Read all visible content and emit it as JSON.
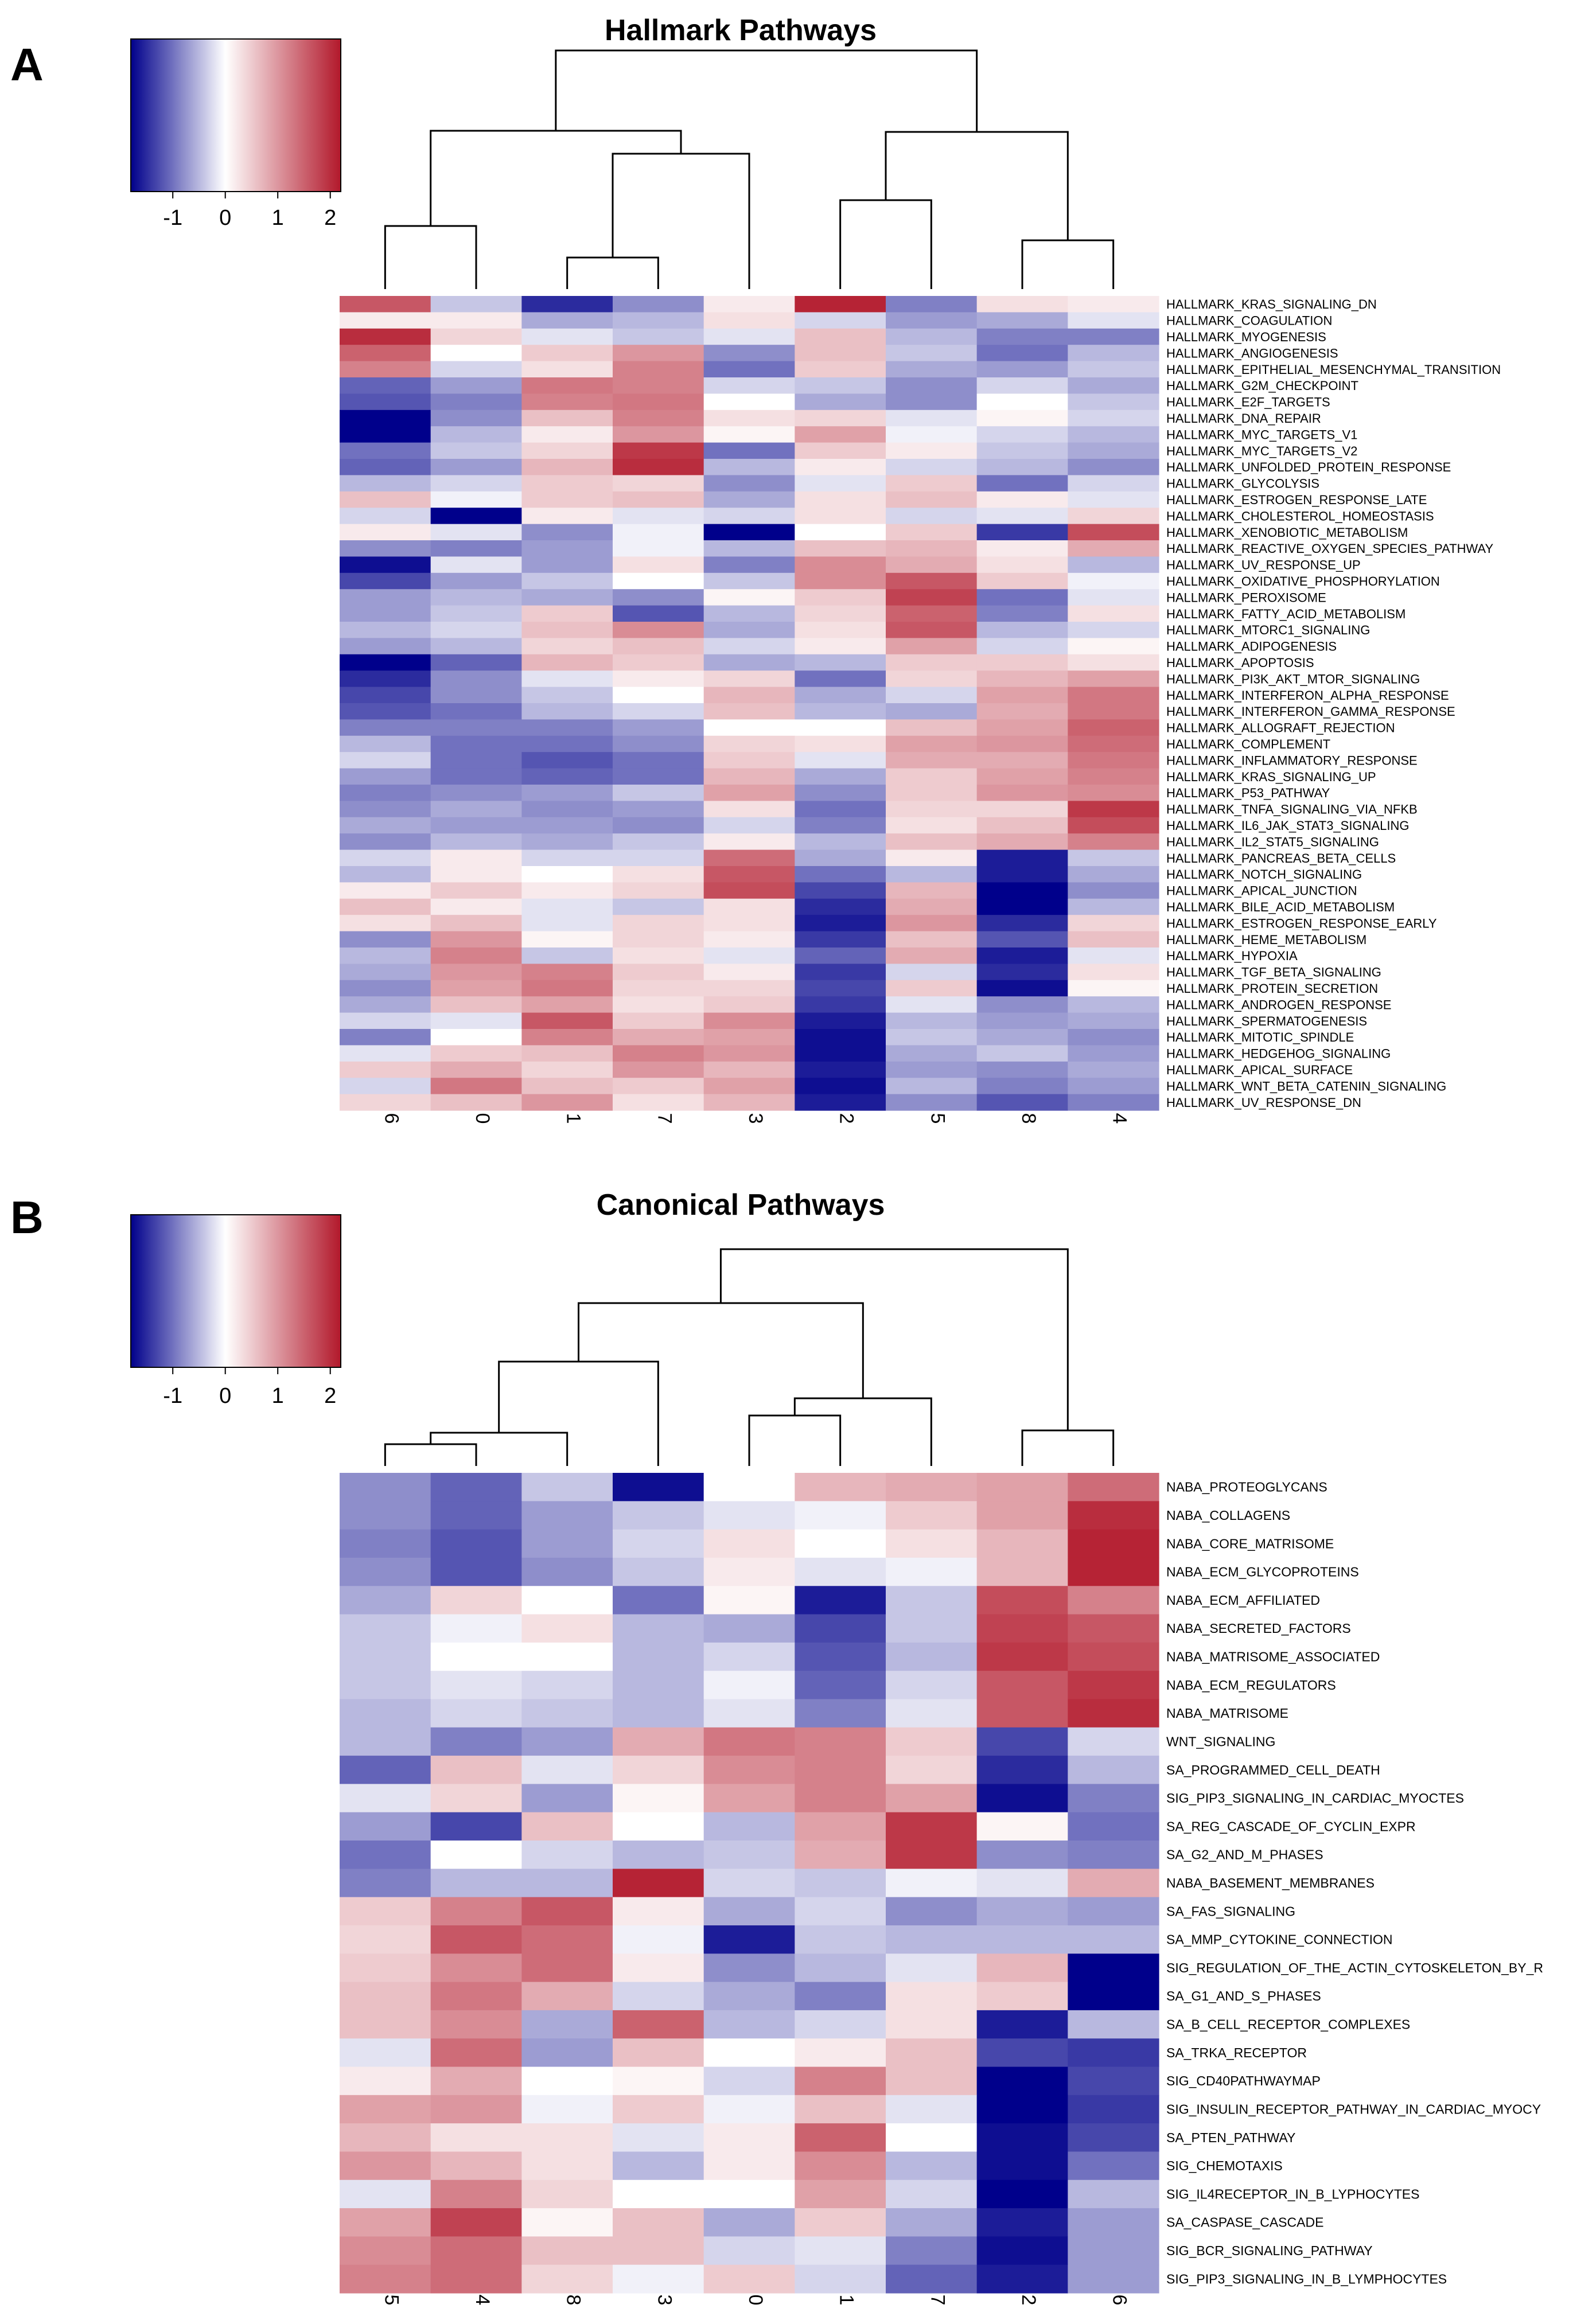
{
  "panels": [
    {
      "label": "A",
      "chart_data": {
        "type": "heatmap",
        "title": "Hallmark Pathways",
        "color_scale": {
          "low": "#00008B",
          "mid": "#FFFFFF",
          "high": "#B2182B",
          "range": [
            -1.8,
            2.2
          ],
          "ticks": [
            "-1",
            "0",
            "1",
            "2"
          ],
          "tick_values": [
            -1,
            0,
            1,
            2
          ]
        },
        "columns": [
          "6",
          "0",
          "1",
          "7",
          "3",
          "2",
          "5",
          "8",
          "4"
        ],
        "rows": [
          "HALLMARK_KRAS_SIGNALING_DN",
          "HALLMARK_COAGULATION",
          "HALLMARK_MYOGENESIS",
          "HALLMARK_ANGIOGENESIS",
          "HALLMARK_EPITHELIAL_MESENCHYMAL_TRANSITION",
          "HALLMARK_G2M_CHECKPOINT",
          "HALLMARK_E2F_TARGETS",
          "HALLMARK_DNA_REPAIR",
          "HALLMARK_MYC_TARGETS_V1",
          "HALLMARK_MYC_TARGETS_V2",
          "HALLMARK_UNFOLDED_PROTEIN_RESPONSE",
          "HALLMARK_GLYCOLYSIS",
          "HALLMARK_ESTROGEN_RESPONSE_LATE",
          "HALLMARK_CHOLESTEROL_HOMEOSTASIS",
          "HALLMARK_XENOBIOTIC_METABOLISM",
          "HALLMARK_REACTIVE_OXYGEN_SPECIES_PATHWAY",
          "HALLMARK_UV_RESPONSE_UP",
          "HALLMARK_OXIDATIVE_PHOSPHORYLATION",
          "HALLMARK_PEROXISOME",
          "HALLMARK_FATTY_ACID_METABOLISM",
          "HALLMARK_MTORC1_SIGNALING",
          "HALLMARK_ADIPOGENESIS",
          "HALLMARK_APOPTOSIS",
          "HALLMARK_PI3K_AKT_MTOR_SIGNALING",
          "HALLMARK_INTERFERON_ALPHA_RESPONSE",
          "HALLMARK_INTERFERON_GAMMA_RESPONSE",
          "HALLMARK_ALLOGRAFT_REJECTION",
          "HALLMARK_COMPLEMENT",
          "HALLMARK_INFLAMMATORY_RESPONSE",
          "HALLMARK_KRAS_SIGNALING_UP",
          "HALLMARK_P53_PATHWAY",
          "HALLMARK_TNFA_SIGNALING_VIA_NFKB",
          "HALLMARK_IL6_JAK_STAT3_SIGNALING",
          "HALLMARK_IL2_STAT5_SIGNALING",
          "HALLMARK_PANCREAS_BETA_CELLS",
          "HALLMARK_NOTCH_SIGNALING",
          "HALLMARK_APICAL_JUNCTION",
          "HALLMARK_BILE_ACID_METABOLISM",
          "HALLMARK_ESTROGEN_RESPONSE_EARLY",
          "HALLMARK_HEME_METABOLISM",
          "HALLMARK_HYPOXIA",
          "HALLMARK_TGF_BETA_SIGNALING",
          "HALLMARK_PROTEIN_SECRETION",
          "HALLMARK_ANDROGEN_RESPONSE",
          "HALLMARK_SPERMATOGENESIS",
          "HALLMARK_MITOTIC_SPINDLE",
          "HALLMARK_HEDGEHOG_SIGNALING",
          "HALLMARK_APICAL_SURFACE",
          "HALLMARK_WNT_BETA_CATENIN_SIGNALING",
          "HALLMARK_UV_RESPONSE_DN"
        ],
        "values": [
          [
            1.6,
            -0.4,
            -1.5,
            -0.8,
            0.2,
            2.1,
            -0.9,
            0.3,
            0.2
          ],
          [
            0.2,
            0.2,
            -0.6,
            -0.5,
            0.3,
            -0.3,
            -0.7,
            -0.6,
            -0.2
          ],
          [
            2.0,
            0.4,
            -0.2,
            -0.4,
            -0.2,
            0.6,
            -0.5,
            -0.9,
            -0.9
          ],
          [
            1.5,
            0.0,
            0.5,
            1.0,
            -0.8,
            0.6,
            -0.4,
            -1.0,
            -0.5
          ],
          [
            1.2,
            -0.3,
            0.3,
            1.2,
            -1.0,
            0.5,
            -0.6,
            -0.7,
            -0.4
          ],
          [
            -1.1,
            -0.7,
            1.3,
            1.2,
            -0.3,
            -0.4,
            -0.8,
            -0.3,
            -0.6
          ],
          [
            -1.2,
            -0.9,
            1.2,
            1.3,
            0.0,
            -0.6,
            -0.8,
            0.0,
            -0.4
          ],
          [
            -1.8,
            -0.8,
            0.6,
            1.2,
            0.3,
            0.4,
            -0.2,
            0.1,
            -0.3
          ],
          [
            -1.8,
            -0.5,
            0.2,
            1.0,
            0.1,
            0.9,
            -0.1,
            -0.3,
            -0.5
          ],
          [
            -1.0,
            -0.4,
            0.4,
            1.9,
            -1.0,
            0.5,
            0.2,
            -0.4,
            -0.6
          ],
          [
            -1.1,
            -0.7,
            0.7,
            2.0,
            -0.5,
            0.2,
            -0.3,
            -0.5,
            -0.8
          ],
          [
            -0.5,
            -0.3,
            0.5,
            0.4,
            -0.8,
            -0.2,
            0.5,
            -1.0,
            -0.3
          ],
          [
            0.6,
            -0.1,
            0.5,
            0.6,
            -0.6,
            0.3,
            0.6,
            0.2,
            -0.2
          ],
          [
            -0.3,
            -1.8,
            0.2,
            -0.2,
            -0.3,
            0.3,
            -0.3,
            -0.2,
            0.4
          ],
          [
            0.2,
            -0.2,
            -0.8,
            -0.1,
            -1.8,
            0.0,
            0.5,
            -1.4,
            1.7
          ],
          [
            -0.8,
            -0.9,
            -0.7,
            -0.1,
            -0.5,
            0.6,
            0.7,
            0.2,
            0.8
          ],
          [
            -1.7,
            -0.2,
            -0.7,
            0.3,
            -0.9,
            1.1,
            0.8,
            0.3,
            -0.5
          ],
          [
            -1.3,
            -0.7,
            -0.4,
            0.0,
            -0.4,
            1.1,
            1.6,
            0.5,
            -0.1
          ],
          [
            -0.7,
            -0.5,
            -0.6,
            -0.8,
            0.1,
            0.5,
            1.8,
            -1.0,
            -0.2
          ],
          [
            -0.7,
            -0.4,
            0.5,
            -1.2,
            -0.5,
            0.4,
            1.5,
            -0.9,
            0.3
          ],
          [
            -0.5,
            -0.3,
            0.6,
            1.1,
            -0.6,
            0.3,
            1.6,
            -0.5,
            -0.3
          ],
          [
            -0.7,
            -0.5,
            0.4,
            0.6,
            -0.3,
            0.2,
            0.9,
            -0.3,
            0.1
          ],
          [
            -1.8,
            -1.1,
            0.7,
            0.5,
            -0.6,
            -0.5,
            0.5,
            0.5,
            0.3
          ],
          [
            -1.5,
            -0.8,
            -0.2,
            0.2,
            0.4,
            -1.0,
            0.4,
            0.7,
            0.9
          ],
          [
            -1.3,
            -0.8,
            -0.4,
            0.0,
            0.7,
            -0.6,
            -0.3,
            0.9,
            1.3
          ],
          [
            -1.2,
            -1.0,
            -0.5,
            -0.3,
            0.6,
            -0.5,
            -0.6,
            0.8,
            1.3
          ],
          [
            -0.9,
            -0.9,
            -0.9,
            -0.7,
            0.0,
            0.0,
            0.6,
            0.9,
            1.5
          ],
          [
            -0.5,
            -1.0,
            -1.0,
            -0.8,
            0.4,
            0.3,
            0.9,
            1.0,
            1.4
          ],
          [
            -0.3,
            -1.0,
            -1.2,
            -1.0,
            0.5,
            -0.2,
            0.8,
            0.8,
            1.3
          ],
          [
            -0.7,
            -1.0,
            -1.1,
            -1.0,
            0.7,
            -0.6,
            0.5,
            0.9,
            1.2
          ],
          [
            -0.9,
            -0.8,
            -0.7,
            -0.4,
            0.9,
            -0.8,
            0.5,
            1.0,
            1.1
          ],
          [
            -0.8,
            -0.6,
            -0.8,
            -0.7,
            0.3,
            -1.0,
            0.4,
            0.4,
            1.9
          ],
          [
            -0.6,
            -0.7,
            -0.7,
            -0.8,
            -0.3,
            -0.9,
            0.3,
            0.6,
            1.7
          ],
          [
            -0.8,
            -0.5,
            -0.6,
            -0.4,
            0.2,
            -0.5,
            0.6,
            0.8,
            1.2
          ],
          [
            -0.3,
            0.2,
            -0.3,
            -0.3,
            1.4,
            -0.6,
            0.2,
            -1.6,
            -0.4
          ],
          [
            -0.5,
            0.2,
            0.0,
            0.3,
            1.6,
            -1.0,
            -0.5,
            -1.6,
            -0.6
          ],
          [
            0.2,
            0.5,
            0.2,
            0.4,
            1.7,
            -1.3,
            0.7,
            -1.8,
            -0.8
          ],
          [
            0.6,
            0.2,
            -0.2,
            -0.4,
            0.3,
            -1.5,
            0.8,
            -1.8,
            -0.5
          ],
          [
            0.3,
            0.6,
            -0.2,
            0.4,
            0.3,
            -1.6,
            1.0,
            -1.5,
            0.4
          ],
          [
            -0.8,
            1.0,
            0.1,
            0.4,
            0.2,
            -1.4,
            0.6,
            -1.2,
            0.6
          ],
          [
            -0.5,
            1.2,
            -0.4,
            0.3,
            -0.2,
            -1.1,
            0.8,
            -1.6,
            -0.2
          ],
          [
            -0.6,
            1.0,
            1.2,
            0.5,
            0.2,
            -1.4,
            -0.3,
            -1.5,
            0.3
          ],
          [
            -0.8,
            0.9,
            1.3,
            0.4,
            0.4,
            -1.3,
            0.5,
            -1.7,
            0.1
          ],
          [
            -0.6,
            0.6,
            0.9,
            0.3,
            0.5,
            -1.4,
            -0.2,
            -0.8,
            -0.5
          ],
          [
            -0.3,
            -0.2,
            1.6,
            0.5,
            1.1,
            -1.6,
            -0.5,
            -0.7,
            -0.6
          ],
          [
            -0.9,
            0.0,
            1.2,
            0.8,
            0.9,
            -1.7,
            -0.4,
            -0.6,
            -0.8
          ],
          [
            -0.2,
            0.5,
            0.6,
            1.2,
            1.0,
            -1.7,
            -0.6,
            -0.4,
            -0.7
          ],
          [
            0.5,
            0.8,
            0.4,
            1.0,
            0.7,
            -1.6,
            -0.7,
            -0.8,
            -0.6
          ],
          [
            -0.3,
            1.3,
            0.6,
            0.5,
            0.9,
            -1.7,
            -0.5,
            -0.9,
            -0.7
          ],
          [
            0.4,
            0.6,
            1.0,
            0.3,
            0.7,
            -1.6,
            -0.8,
            -1.2,
            -0.9
          ]
        ]
      }
    },
    {
      "label": "B",
      "chart_data": {
        "type": "heatmap",
        "title": "Canonical Pathways",
        "color_scale": {
          "low": "#00008B",
          "mid": "#FFFFFF",
          "high": "#B2182B",
          "range": [
            -1.8,
            2.2
          ],
          "ticks": [
            "-1",
            "0",
            "1",
            "2"
          ],
          "tick_values": [
            -1,
            0,
            1,
            2
          ]
        },
        "columns": [
          "5",
          "4",
          "8",
          "3",
          "0",
          "1",
          "7",
          "2",
          "6"
        ],
        "rows": [
          "NABA_PROTEOGLYCANS",
          "NABA_COLLAGENS",
          "NABA_CORE_MATRISOME",
          "NABA_ECM_GLYCOPROTEINS",
          "NABA_ECM_AFFILIATED",
          "NABA_SECRETED_FACTORS",
          "NABA_MATRISOME_ASSOCIATED",
          "NABA_ECM_REGULATORS",
          "NABA_MATRISOME",
          "WNT_SIGNALING",
          "SA_PROGRAMMED_CELL_DEATH",
          "SIG_PIP3_SIGNALING_IN_CARDIAC_MYOCTES",
          "SA_REG_CASCADE_OF_CYCLIN_EXPR",
          "SA_G2_AND_M_PHASES",
          "NABA_BASEMENT_MEMBRANES",
          "SA_FAS_SIGNALING",
          "SA_MMP_CYTOKINE_CONNECTION",
          "SIG_REGULATION_OF_THE_ACTIN_CYTOSKELETON_BY_R",
          "SA_G1_AND_S_PHASES",
          "SA_B_CELL_RECEPTOR_COMPLEXES",
          "SA_TRKA_RECEPTOR",
          "SIG_CD40PATHWAYMAP",
          "SIG_INSULIN_RECEPTOR_PATHWAY_IN_CARDIAC_MYOCY",
          "SA_PTEN_PATHWAY",
          "SIG_CHEMOTAXIS",
          "SIG_IL4RECEPTOR_IN_B_LYPHOCYTES",
          "SA_CASPASE_CASCADE",
          "SIG_BCR_SIGNALING_PATHWAY",
          "SIG_PIP3_SIGNALING_IN_B_LYMPHOCYTES"
        ],
        "values": [
          [
            -0.8,
            -1.1,
            -0.4,
            -1.7,
            0.0,
            0.7,
            0.8,
            0.9,
            1.4
          ],
          [
            -0.8,
            -1.1,
            -0.7,
            -0.4,
            -0.2,
            -0.1,
            0.5,
            0.9,
            2.0
          ],
          [
            -0.9,
            -1.2,
            -0.7,
            -0.3,
            0.3,
            0.0,
            0.3,
            0.7,
            2.1
          ],
          [
            -0.8,
            -1.2,
            -0.8,
            -0.4,
            0.2,
            -0.2,
            -0.1,
            0.7,
            2.1
          ],
          [
            -0.6,
            0.4,
            0.0,
            -1.0,
            0.1,
            -1.6,
            -0.4,
            1.7,
            1.2
          ],
          [
            -0.4,
            -0.1,
            0.3,
            -0.5,
            -0.6,
            -1.3,
            -0.4,
            1.8,
            1.6
          ],
          [
            -0.4,
            0.0,
            0.0,
            -0.5,
            -0.3,
            -1.2,
            -0.5,
            1.9,
            1.7
          ],
          [
            -0.4,
            -0.2,
            -0.3,
            -0.5,
            -0.1,
            -1.1,
            -0.3,
            1.6,
            1.9
          ],
          [
            -0.5,
            -0.3,
            -0.4,
            -0.5,
            -0.2,
            -0.9,
            -0.2,
            1.6,
            2.0
          ],
          [
            -0.5,
            -0.9,
            -0.7,
            0.8,
            1.3,
            1.2,
            0.5,
            -1.3,
            -0.3
          ],
          [
            -1.1,
            0.6,
            -0.2,
            0.4,
            1.1,
            1.2,
            0.4,
            -1.5,
            -0.5
          ],
          [
            -0.2,
            0.4,
            -0.7,
            0.1,
            0.9,
            1.2,
            0.9,
            -1.7,
            -0.9
          ],
          [
            -0.7,
            -1.3,
            0.6,
            0.0,
            -0.5,
            0.9,
            1.9,
            0.1,
            -1.0
          ],
          [
            -1.0,
            0.0,
            -0.3,
            -0.5,
            -0.4,
            0.8,
            1.9,
            -0.8,
            -0.9
          ],
          [
            -0.9,
            -0.5,
            -0.5,
            2.1,
            -0.3,
            -0.4,
            -0.1,
            -0.2,
            0.8
          ],
          [
            0.5,
            1.2,
            1.6,
            0.2,
            -0.6,
            -0.3,
            -0.8,
            -0.6,
            -0.7
          ],
          [
            0.4,
            1.6,
            1.4,
            -0.1,
            -1.6,
            -0.4,
            -0.5,
            -0.5,
            -0.5
          ],
          [
            0.5,
            1.1,
            1.4,
            0.2,
            -0.8,
            -0.5,
            -0.2,
            0.7,
            -1.8
          ],
          [
            0.6,
            1.3,
            0.8,
            -0.3,
            -0.6,
            -0.9,
            0.3,
            0.5,
            -1.8
          ],
          [
            0.6,
            1.1,
            -0.6,
            1.5,
            -0.5,
            -0.3,
            0.3,
            -1.6,
            -0.5
          ],
          [
            -0.2,
            1.4,
            -0.7,
            0.6,
            0.0,
            0.2,
            0.6,
            -1.3,
            -1.4
          ],
          [
            0.2,
            0.8,
            0.0,
            0.1,
            -0.3,
            1.2,
            0.6,
            -1.8,
            -1.3
          ],
          [
            0.9,
            1.0,
            -0.1,
            0.5,
            -0.1,
            0.6,
            -0.2,
            -1.8,
            -1.4
          ],
          [
            0.7,
            0.3,
            0.3,
            -0.2,
            0.2,
            1.5,
            0.0,
            -1.7,
            -1.3
          ],
          [
            1.0,
            0.7,
            0.3,
            -0.5,
            0.2,
            1.1,
            -0.5,
            -1.7,
            -1.0
          ],
          [
            -0.2,
            1.2,
            0.4,
            0.0,
            0.0,
            0.9,
            -0.3,
            -1.9,
            -0.5
          ],
          [
            0.9,
            1.8,
            0.1,
            0.6,
            -0.6,
            0.5,
            -0.6,
            -1.6,
            -0.7
          ],
          [
            1.1,
            1.4,
            0.6,
            0.6,
            -0.3,
            -0.2,
            -0.9,
            -1.7,
            -0.7
          ],
          [
            1.2,
            1.4,
            0.4,
            -0.1,
            0.5,
            -0.3,
            -1.1,
            -1.6,
            -0.7
          ]
        ]
      }
    }
  ]
}
